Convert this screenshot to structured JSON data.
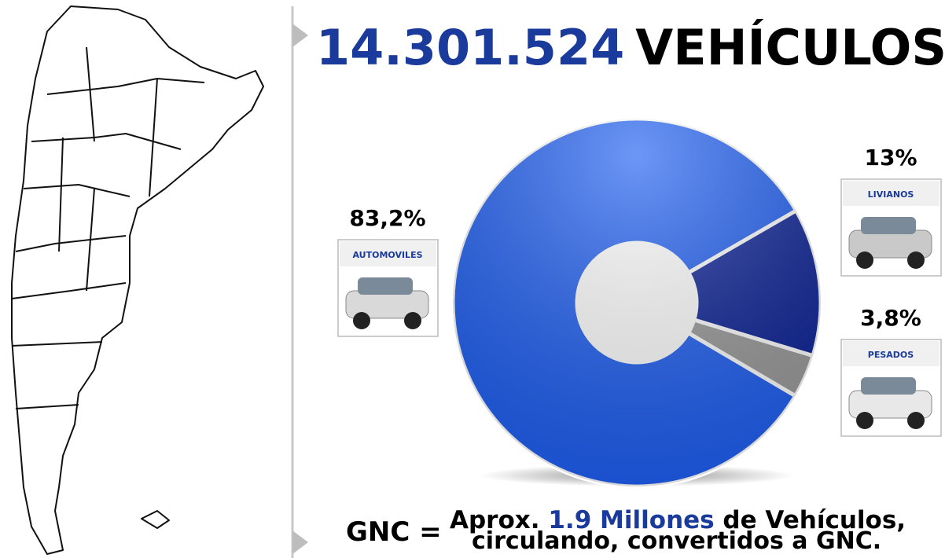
{
  "chart_data": {
    "type": "pie",
    "title_number": "14.301.524",
    "title": "VEHÍCULOS",
    "categories": [
      "AUTOMOVILES",
      "LIVIANOS",
      "PESADOS"
    ],
    "values": [
      83.2,
      13,
      3.8
    ],
    "value_labels": [
      "83,2%",
      "13%",
      "3,8%"
    ],
    "colors": [
      "#1f5ff2",
      "#0b2196",
      "#9a9a9a"
    ],
    "donut": true,
    "footer": {
      "lead": "GNC =",
      "line1_start": "Aprox.",
      "line1_highlight": "1.9 Millones",
      "line1_end": "de Vehículos,",
      "line2": "circulando, convertidos a GNC."
    }
  }
}
